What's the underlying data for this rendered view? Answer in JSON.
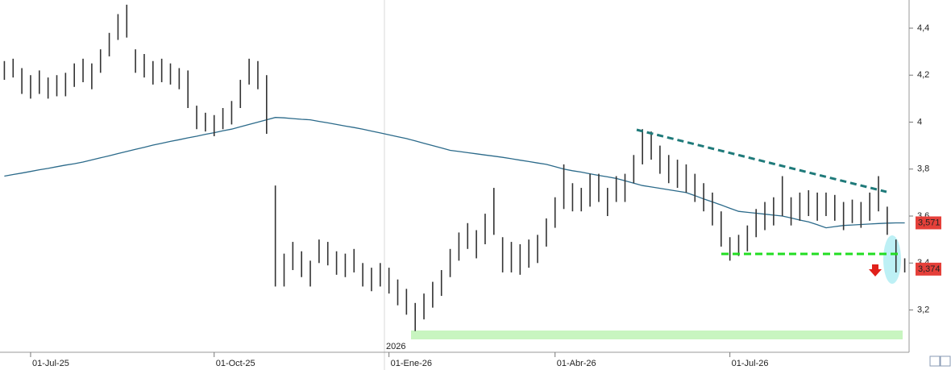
{
  "chart_data": {
    "type": "range_bar",
    "categories": [
      null,
      null,
      null,
      "01-Jul-25",
      null,
      null,
      null,
      null,
      null,
      null,
      null,
      null,
      null,
      null,
      null,
      null,
      null,
      null,
      null,
      null,
      null,
      null,
      null,
      null,
      "01-Oct-25",
      null,
      null,
      null,
      null,
      null,
      null,
      null,
      null,
      null,
      null,
      null,
      null,
      null,
      null,
      null,
      null,
      null,
      null,
      null,
      "01-Ene-26",
      null,
      null,
      null,
      null,
      null,
      null,
      null,
      null,
      null,
      null,
      null,
      null,
      null,
      null,
      null,
      null,
      null,
      null,
      "01-Abr-26",
      null,
      null,
      null,
      null,
      null,
      null,
      null,
      null,
      null,
      null,
      null,
      null,
      null,
      null,
      null,
      null,
      null,
      null,
      null,
      "01-Jul-26",
      null,
      null,
      null,
      null,
      null,
      null,
      null,
      null,
      null,
      null,
      null,
      null,
      null,
      null,
      null,
      null,
      null,
      null,
      null,
      null
    ],
    "year_label": "2026",
    "bar_color": "#333333",
    "high": [
      4.26,
      4.27,
      4.23,
      4.2,
      4.22,
      4.19,
      4.2,
      4.21,
      4.25,
      4.27,
      4.25,
      4.31,
      4.38,
      4.46,
      4.5,
      4.31,
      4.29,
      4.26,
      4.27,
      4.25,
      4.23,
      4.22,
      4.07,
      4.04,
      4.03,
      4.06,
      4.09,
      4.18,
      4.27,
      4.26,
      4.2,
      3.73,
      3.44,
      3.49,
      3.45,
      3.41,
      3.5,
      3.49,
      3.45,
      3.44,
      3.46,
      3.4,
      3.38,
      3.4,
      3.38,
      3.33,
      3.29,
      3.23,
      3.27,
      3.32,
      3.37,
      3.46,
      3.53,
      3.57,
      3.54,
      3.61,
      3.72,
      3.51,
      3.49,
      3.48,
      3.5,
      3.52,
      3.59,
      3.68,
      3.82,
      3.74,
      3.72,
      3.78,
      3.78,
      3.72,
      3.77,
      3.78,
      3.86,
      3.97,
      3.96,
      3.9,
      3.86,
      3.84,
      3.82,
      3.78,
      3.74,
      3.7,
      3.62,
      3.51,
      3.52,
      3.56,
      3.63,
      3.66,
      3.68,
      3.77,
      3.68,
      3.7,
      3.71,
      3.7,
      3.7,
      3.69,
      3.66,
      3.67,
      3.66,
      3.7,
      3.77,
      3.64,
      3.5,
      3.42
    ],
    "low": [
      4.18,
      4.19,
      4.12,
      4.1,
      4.12,
      4.1,
      4.11,
      4.11,
      4.15,
      4.17,
      4.14,
      4.21,
      4.28,
      4.35,
      4.36,
      4.21,
      4.19,
      4.16,
      4.17,
      4.16,
      4.14,
      4.06,
      3.97,
      3.96,
      3.94,
      3.97,
      3.99,
      4.06,
      4.16,
      4.14,
      3.95,
      3.3,
      3.3,
      3.37,
      3.34,
      3.3,
      3.4,
      3.39,
      3.35,
      3.34,
      3.36,
      3.3,
      3.28,
      3.3,
      3.27,
      3.22,
      3.18,
      3.11,
      3.16,
      3.21,
      3.26,
      3.34,
      3.41,
      3.46,
      3.42,
      3.48,
      3.52,
      3.36,
      3.36,
      3.35,
      3.38,
      3.4,
      3.47,
      3.55,
      3.63,
      3.62,
      3.62,
      3.64,
      3.66,
      3.6,
      3.66,
      3.66,
      3.74,
      3.82,
      3.84,
      3.78,
      3.74,
      3.72,
      3.7,
      3.66,
      3.62,
      3.56,
      3.47,
      3.41,
      3.43,
      3.45,
      3.51,
      3.54,
      3.56,
      3.6,
      3.56,
      3.58,
      3.6,
      3.58,
      3.6,
      3.58,
      3.54,
      3.57,
      3.55,
      3.58,
      3.62,
      3.52,
      3.36,
      3.36
    ],
    "moving_average": {
      "color": "#2b6a8a",
      "values": [
        3.77,
        3.777,
        3.783,
        3.79,
        3.797,
        3.803,
        3.81,
        3.817,
        3.823,
        3.83,
        3.839,
        3.848,
        3.857,
        3.866,
        3.875,
        3.884,
        3.893,
        3.902,
        3.91,
        3.918,
        3.925,
        3.933,
        3.94,
        3.948,
        3.955,
        3.963,
        3.97,
        3.98,
        3.99,
        4.0,
        4.01,
        4.02,
        4.018,
        4.015,
        4.012,
        4.01,
        4.003,
        3.997,
        3.99,
        3.983,
        3.977,
        3.97,
        3.962,
        3.954,
        3.946,
        3.938,
        3.93,
        3.92,
        3.91,
        3.9,
        3.89,
        3.88,
        3.875,
        3.87,
        3.865,
        3.86,
        3.855,
        3.85,
        3.844,
        3.838,
        3.832,
        3.826,
        3.82,
        3.81,
        3.8,
        3.793,
        3.787,
        3.78,
        3.773,
        3.767,
        3.76,
        3.75,
        3.74,
        3.73,
        3.724,
        3.718,
        3.712,
        3.706,
        3.7,
        3.687,
        3.673,
        3.66,
        3.647,
        3.633,
        3.62,
        3.616,
        3.612,
        3.608,
        3.604,
        3.6,
        3.592,
        3.583,
        3.575,
        3.563,
        3.55,
        3.555,
        3.56,
        3.562,
        3.564,
        3.566,
        3.568,
        3.57,
        3.571,
        3.571
      ]
    },
    "ylim": [
      3.02,
      4.52
    ],
    "yticks": [
      {
        "value": 4.4,
        "label": "4,4"
      },
      {
        "value": 4.2,
        "label": "4,2"
      },
      4,
      {
        "value": 3.8,
        "label": "3,8"
      },
      {
        "value": 3.6,
        "label": "3,6"
      },
      {
        "value": 3.4,
        "label": "3,4"
      },
      {
        "value": 3.2,
        "label": "3,2"
      }
    ],
    "price_tags": [
      {
        "value": 3.571,
        "label": "3,571",
        "color": "#e5403a"
      },
      {
        "value": 3.374,
        "label": "3,374",
        "color": "#e5403a"
      }
    ]
  }
}
